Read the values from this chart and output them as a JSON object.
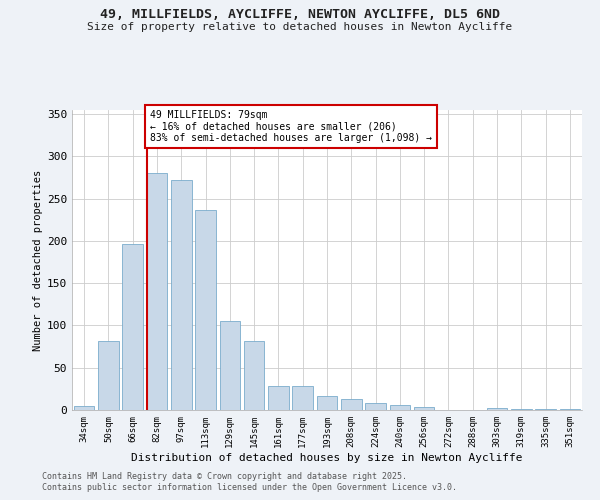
{
  "title_line1": "49, MILLFIELDS, AYCLIFFE, NEWTON AYCLIFFE, DL5 6ND",
  "title_line2": "Size of property relative to detached houses in Newton Aycliffe",
  "xlabel": "Distribution of detached houses by size in Newton Aycliffe",
  "ylabel": "Number of detached properties",
  "categories": [
    "34sqm",
    "50sqm",
    "66sqm",
    "82sqm",
    "97sqm",
    "113sqm",
    "129sqm",
    "145sqm",
    "161sqm",
    "177sqm",
    "193sqm",
    "208sqm",
    "224sqm",
    "240sqm",
    "256sqm",
    "272sqm",
    "288sqm",
    "303sqm",
    "319sqm",
    "335sqm",
    "351sqm"
  ],
  "values": [
    5,
    82,
    197,
    280,
    272,
    237,
    105,
    82,
    28,
    28,
    16,
    13,
    8,
    6,
    4,
    0,
    0,
    2,
    1,
    1,
    1
  ],
  "bar_color": "#c8d8e8",
  "bar_edge_color": "#7aaccc",
  "vline_index": 3,
  "vline_color": "#cc0000",
  "annotation_title": "49 MILLFIELDS: 79sqm",
  "annotation_line1": "← 16% of detached houses are smaller (206)",
  "annotation_line2": "83% of semi-detached houses are larger (1,098) →",
  "annotation_box_color": "#cc0000",
  "ylim": [
    0,
    355
  ],
  "yticks": [
    0,
    50,
    100,
    150,
    200,
    250,
    300,
    350
  ],
  "footer_line1": "Contains HM Land Registry data © Crown copyright and database right 2025.",
  "footer_line2": "Contains public sector information licensed under the Open Government Licence v3.0.",
  "bg_color": "#eef2f7",
  "plot_bg_color": "#ffffff"
}
